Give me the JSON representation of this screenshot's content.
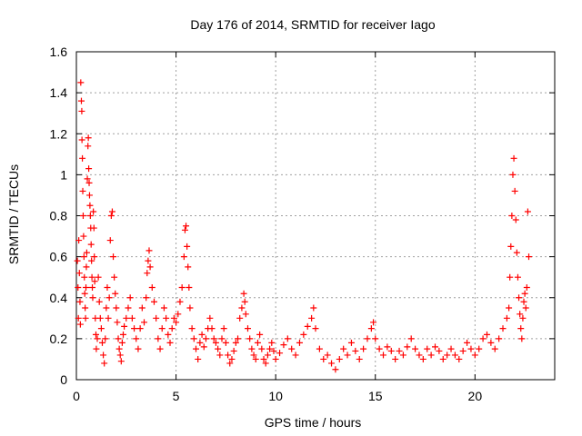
{
  "chart_data": {
    "type": "scatter",
    "title": "Day 176 of 2014, SRMTID for receiver Iago",
    "xlabel": "GPS time / hours",
    "ylabel": "SRMTID / TECUs",
    "xlim": [
      0,
      24
    ],
    "ylim": [
      0,
      1.6
    ],
    "grid": true,
    "marker": "+",
    "color": "#ff0000",
    "x_ticks": [
      {
        "value": 0,
        "label": "0"
      },
      {
        "value": 5,
        "label": "5"
      },
      {
        "value": 10,
        "label": "10"
      },
      {
        "value": 15,
        "label": "15"
      },
      {
        "value": 20,
        "label": "20"
      }
    ],
    "y_ticks": [
      {
        "value": 0,
        "label": "0"
      },
      {
        "value": 0.2,
        "label": "0.2"
      },
      {
        "value": 0.4,
        "label": "0.4"
      },
      {
        "value": 0.6,
        "label": "0.6"
      },
      {
        "value": 0.8,
        "label": "0.8"
      },
      {
        "value": 1.0,
        "label": "1"
      },
      {
        "value": 1.2,
        "label": "1.2"
      },
      {
        "value": 1.4,
        "label": "1.4"
      },
      {
        "value": 1.6,
        "label": "1.6"
      }
    ],
    "series": [
      {
        "name": "SRMTID",
        "points": [
          [
            0.05,
            0.58
          ],
          [
            0.08,
            0.45
          ],
          [
            0.1,
            0.3
          ],
          [
            0.12,
            0.68
          ],
          [
            0.15,
            0.52
          ],
          [
            0.18,
            0.38
          ],
          [
            0.2,
            0.27
          ],
          [
            0.22,
            1.45
          ],
          [
            0.25,
            1.36
          ],
          [
            0.27,
            1.31
          ],
          [
            0.28,
            1.17
          ],
          [
            0.3,
            1.08
          ],
          [
            0.32,
            0.92
          ],
          [
            0.34,
            0.8
          ],
          [
            0.36,
            0.7
          ],
          [
            0.38,
            0.6
          ],
          [
            0.4,
            0.5
          ],
          [
            0.42,
            0.42
          ],
          [
            0.44,
            0.35
          ],
          [
            0.46,
            0.3
          ],
          [
            0.48,
            0.45
          ],
          [
            0.5,
            0.55
          ],
          [
            0.52,
            0.62
          ],
          [
            0.55,
            0.98
          ],
          [
            0.58,
            1.14
          ],
          [
            0.6,
            1.18
          ],
          [
            0.62,
            1.03
          ],
          [
            0.64,
            0.96
          ],
          [
            0.66,
            0.9
          ],
          [
            0.68,
            0.85
          ],
          [
            0.7,
            0.8
          ],
          [
            0.72,
            0.74
          ],
          [
            0.74,
            0.66
          ],
          [
            0.76,
            0.58
          ],
          [
            0.78,
            0.5
          ],
          [
            0.8,
            0.45
          ],
          [
            0.82,
            0.4
          ],
          [
            0.85,
            0.82
          ],
          [
            0.88,
            0.74
          ],
          [
            0.9,
            0.6
          ],
          [
            0.92,
            0.48
          ],
          [
            0.95,
            0.3
          ],
          [
            0.98,
            0.22
          ],
          [
            1.0,
            0.15
          ],
          [
            1.05,
            0.2
          ],
          [
            1.1,
            0.5
          ],
          [
            1.15,
            0.38
          ],
          [
            1.2,
            0.3
          ],
          [
            1.25,
            0.25
          ],
          [
            1.3,
            0.18
          ],
          [
            1.35,
            0.12
          ],
          [
            1.4,
            0.08
          ],
          [
            1.45,
            0.2
          ],
          [
            1.5,
            0.35
          ],
          [
            1.55,
            0.45
          ],
          [
            1.6,
            0.3
          ],
          [
            1.65,
            0.4
          ],
          [
            1.7,
            0.68
          ],
          [
            1.75,
            0.8
          ],
          [
            1.8,
            0.82
          ],
          [
            1.85,
            0.6
          ],
          [
            1.9,
            0.5
          ],
          [
            1.95,
            0.42
          ],
          [
            2.0,
            0.35
          ],
          [
            2.05,
            0.28
          ],
          [
            2.1,
            0.2
          ],
          [
            2.15,
            0.15
          ],
          [
            2.2,
            0.12
          ],
          [
            2.25,
            0.09
          ],
          [
            2.3,
            0.18
          ],
          [
            2.35,
            0.22
          ],
          [
            2.4,
            0.26
          ],
          [
            2.5,
            0.3
          ],
          [
            2.6,
            0.35
          ],
          [
            2.7,
            0.4
          ],
          [
            2.8,
            0.3
          ],
          [
            2.9,
            0.25
          ],
          [
            3.0,
            0.2
          ],
          [
            3.1,
            0.15
          ],
          [
            3.2,
            0.25
          ],
          [
            3.3,
            0.35
          ],
          [
            3.4,
            0.28
          ],
          [
            3.5,
            0.4
          ],
          [
            3.55,
            0.52
          ],
          [
            3.6,
            0.58
          ],
          [
            3.65,
            0.63
          ],
          [
            3.7,
            0.55
          ],
          [
            3.8,
            0.45
          ],
          [
            3.9,
            0.38
          ],
          [
            4.0,
            0.3
          ],
          [
            4.1,
            0.2
          ],
          [
            4.2,
            0.15
          ],
          [
            4.3,
            0.25
          ],
          [
            4.4,
            0.35
          ],
          [
            4.5,
            0.3
          ],
          [
            4.6,
            0.22
          ],
          [
            4.7,
            0.18
          ],
          [
            4.8,
            0.25
          ],
          [
            4.9,
            0.3
          ],
          [
            5.0,
            0.28
          ],
          [
            5.1,
            0.32
          ],
          [
            5.2,
            0.38
          ],
          [
            5.3,
            0.45
          ],
          [
            5.4,
            0.6
          ],
          [
            5.45,
            0.73
          ],
          [
            5.5,
            0.75
          ],
          [
            5.55,
            0.65
          ],
          [
            5.6,
            0.55
          ],
          [
            5.65,
            0.45
          ],
          [
            5.7,
            0.35
          ],
          [
            5.8,
            0.25
          ],
          [
            5.9,
            0.2
          ],
          [
            6.0,
            0.15
          ],
          [
            6.1,
            0.1
          ],
          [
            6.2,
            0.18
          ],
          [
            6.3,
            0.22
          ],
          [
            6.4,
            0.16
          ],
          [
            6.5,
            0.2
          ],
          [
            6.6,
            0.25
          ],
          [
            6.7,
            0.3
          ],
          [
            6.8,
            0.25
          ],
          [
            6.9,
            0.2
          ],
          [
            7.0,
            0.18
          ],
          [
            7.1,
            0.15
          ],
          [
            7.2,
            0.12
          ],
          [
            7.3,
            0.2
          ],
          [
            7.4,
            0.25
          ],
          [
            7.5,
            0.18
          ],
          [
            7.6,
            0.12
          ],
          [
            7.7,
            0.08
          ],
          [
            7.8,
            0.1
          ],
          [
            7.9,
            0.14
          ],
          [
            8.0,
            0.18
          ],
          [
            8.1,
            0.2
          ],
          [
            8.2,
            0.3
          ],
          [
            8.3,
            0.35
          ],
          [
            8.4,
            0.42
          ],
          [
            8.45,
            0.38
          ],
          [
            8.5,
            0.32
          ],
          [
            8.6,
            0.25
          ],
          [
            8.7,
            0.2
          ],
          [
            8.8,
            0.15
          ],
          [
            8.9,
            0.12
          ],
          [
            9.0,
            0.1
          ],
          [
            9.1,
            0.18
          ],
          [
            9.2,
            0.22
          ],
          [
            9.3,
            0.15
          ],
          [
            9.4,
            0.1
          ],
          [
            9.5,
            0.08
          ],
          [
            9.6,
            0.12
          ],
          [
            9.7,
            0.15
          ],
          [
            9.8,
            0.18
          ],
          [
            9.9,
            0.14
          ],
          [
            10.0,
            0.1
          ],
          [
            10.2,
            0.13
          ],
          [
            10.4,
            0.17
          ],
          [
            10.6,
            0.2
          ],
          [
            10.8,
            0.15
          ],
          [
            11.0,
            0.12
          ],
          [
            11.2,
            0.18
          ],
          [
            11.4,
            0.22
          ],
          [
            11.6,
            0.26
          ],
          [
            11.8,
            0.3
          ],
          [
            11.9,
            0.35
          ],
          [
            12.0,
            0.25
          ],
          [
            12.2,
            0.15
          ],
          [
            12.4,
            0.1
          ],
          [
            12.6,
            0.12
          ],
          [
            12.8,
            0.08
          ],
          [
            13.0,
            0.05
          ],
          [
            13.2,
            0.1
          ],
          [
            13.4,
            0.15
          ],
          [
            13.6,
            0.12
          ],
          [
            13.8,
            0.18
          ],
          [
            14.0,
            0.14
          ],
          [
            14.2,
            0.1
          ],
          [
            14.4,
            0.15
          ],
          [
            14.6,
            0.2
          ],
          [
            14.8,
            0.25
          ],
          [
            14.9,
            0.28
          ],
          [
            15.0,
            0.2
          ],
          [
            15.2,
            0.15
          ],
          [
            15.4,
            0.12
          ],
          [
            15.6,
            0.16
          ],
          [
            15.8,
            0.14
          ],
          [
            16.0,
            0.1
          ],
          [
            16.2,
            0.14
          ],
          [
            16.4,
            0.12
          ],
          [
            16.6,
            0.16
          ],
          [
            16.8,
            0.2
          ],
          [
            17.0,
            0.15
          ],
          [
            17.2,
            0.12
          ],
          [
            17.4,
            0.1
          ],
          [
            17.6,
            0.15
          ],
          [
            17.8,
            0.12
          ],
          [
            18.0,
            0.16
          ],
          [
            18.2,
            0.14
          ],
          [
            18.4,
            0.1
          ],
          [
            18.6,
            0.12
          ],
          [
            18.8,
            0.15
          ],
          [
            19.0,
            0.12
          ],
          [
            19.2,
            0.1
          ],
          [
            19.4,
            0.14
          ],
          [
            19.6,
            0.18
          ],
          [
            19.8,
            0.15
          ],
          [
            20.0,
            0.12
          ],
          [
            20.2,
            0.15
          ],
          [
            20.4,
            0.2
          ],
          [
            20.6,
            0.22
          ],
          [
            20.8,
            0.18
          ],
          [
            21.0,
            0.15
          ],
          [
            21.2,
            0.2
          ],
          [
            21.4,
            0.25
          ],
          [
            21.6,
            0.3
          ],
          [
            21.7,
            0.35
          ],
          [
            21.75,
            0.5
          ],
          [
            21.8,
            0.65
          ],
          [
            21.85,
            0.8
          ],
          [
            21.9,
            1.0
          ],
          [
            21.95,
            1.08
          ],
          [
            22.0,
            0.92
          ],
          [
            22.05,
            0.78
          ],
          [
            22.1,
            0.62
          ],
          [
            22.15,
            0.5
          ],
          [
            22.2,
            0.4
          ],
          [
            22.25,
            0.32
          ],
          [
            22.3,
            0.25
          ],
          [
            22.35,
            0.2
          ],
          [
            22.4,
            0.3
          ],
          [
            22.45,
            0.38
          ],
          [
            22.5,
            0.42
          ],
          [
            22.55,
            0.35
          ],
          [
            22.6,
            0.45
          ],
          [
            22.65,
            0.82
          ],
          [
            22.7,
            0.6
          ]
        ]
      }
    ]
  }
}
